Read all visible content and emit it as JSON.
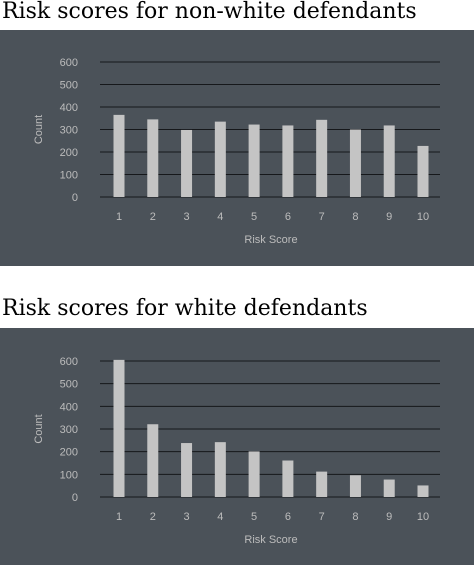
{
  "background_color": "#4b5259",
  "bar_color": "#c4c4c4",
  "grid_color": "#16181b",
  "text_color": "#bcbcbc",
  "chart_data": [
    {
      "type": "bar",
      "title": "Risk scores for non-white defendants",
      "xlabel": "Risk Score",
      "ylabel": "Count",
      "categories": [
        "1",
        "2",
        "3",
        "4",
        "5",
        "6",
        "7",
        "8",
        "9",
        "10"
      ],
      "values": [
        365,
        345,
        298,
        335,
        322,
        318,
        343,
        300,
        318,
        227
      ],
      "ylim": [
        0,
        600
      ],
      "yticks": [
        "0",
        "100",
        "200",
        "300",
        "400",
        "500",
        "600"
      ],
      "grid": true,
      "legend": "none"
    },
    {
      "type": "bar",
      "title": "Risk scores for white defendants",
      "xlabel": "Risk Score",
      "ylabel": "Count",
      "categories": [
        "1",
        "2",
        "3",
        "4",
        "5",
        "6",
        "7",
        "8",
        "9",
        "10"
      ],
      "values": [
        605,
        321,
        238,
        242,
        201,
        161,
        112,
        96,
        77,
        51
      ],
      "ylim": [
        0,
        600
      ],
      "yticks": [
        "0",
        "100",
        "200",
        "300",
        "400",
        "500",
        "600"
      ],
      "grid": true,
      "legend": "none"
    }
  ]
}
